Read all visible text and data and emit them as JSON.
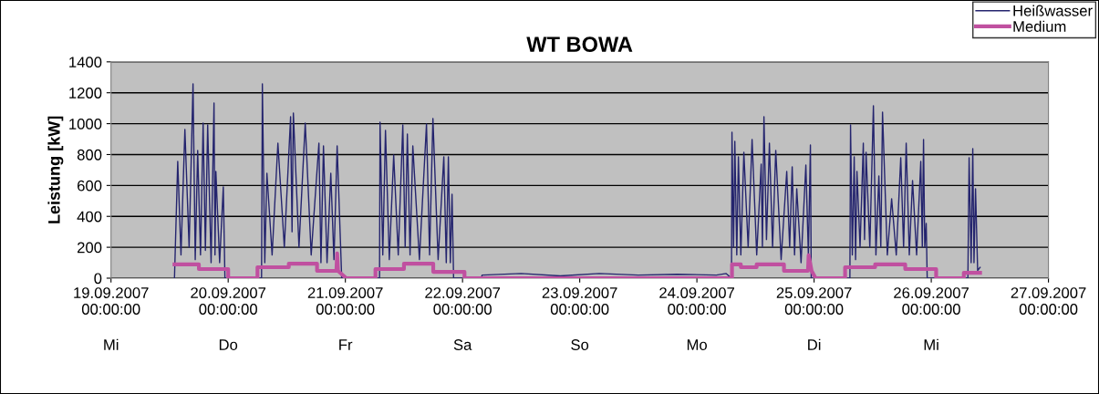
{
  "chart_data": {
    "type": "line",
    "title": "WT BOWA",
    "ylabel": "Leistung [kW]",
    "ylim": [
      0,
      1400
    ],
    "yticks": [
      0,
      200,
      400,
      600,
      800,
      1000,
      1200,
      1400
    ],
    "xlim": [
      "2007-09-19",
      "2007-09-27"
    ],
    "xticks": [
      {
        "value": "2007-09-19",
        "label": "19.09.2007\n00:00:00"
      },
      {
        "value": "2007-09-20",
        "label": "20.09.2007\n00:00:00"
      },
      {
        "value": "2007-09-21",
        "label": "21.09.2007\n00:00:00"
      },
      {
        "value": "2007-09-22",
        "label": "22.09.2007\n00:00:00"
      },
      {
        "value": "2007-09-23",
        "label": "23.09.2007\n00:00:00"
      },
      {
        "value": "2007-09-24",
        "label": "24.09.2007\n00:00:00"
      },
      {
        "value": "2007-09-25",
        "label": "25.09.2007\n00:00:00"
      },
      {
        "value": "2007-09-26",
        "label": "26.09.2007\n00:00:00"
      },
      {
        "value": "2007-09-27",
        "label": "27.09.2007\n00:00:00"
      }
    ],
    "annotations": [
      "Mi",
      "Do",
      "Fr",
      "Sa",
      "So",
      "Mo",
      "Di",
      "Mi"
    ],
    "grid": "y",
    "legend": "top right",
    "marker": "none",
    "line_style": "solid",
    "series": [
      {
        "name": "Heißwasser",
        "color": "#24246e",
        "x": [
          "2007-09-19T13:00",
          "2007-09-19T13:40",
          "2007-09-19T14:20",
          "2007-09-19T15:08",
          "2007-09-19T16:00",
          "2007-09-19T16:48",
          "2007-09-19T17:15",
          "2007-09-19T17:45",
          "2007-09-19T18:20",
          "2007-09-19T18:52",
          "2007-09-19T19:20",
          "2007-09-19T19:48",
          "2007-09-19T20:30",
          "2007-09-19T21:06",
          "2007-09-19T21:18",
          "2007-09-19T21:29",
          "2007-09-19T22:15",
          "2007-09-19T23:00",
          "2007-09-19T23:20",
          "2007-09-20T06:50",
          "2007-09-20T07:00",
          "2007-09-20T07:30",
          "2007-09-20T07:56",
          "2007-09-20T09:00",
          "2007-09-20T10:11",
          "2007-09-20T11:30",
          "2007-09-20T12:47",
          "2007-09-20T13:05",
          "2007-09-20T13:21",
          "2007-09-20T14:30",
          "2007-09-20T15:47",
          "2007-09-20T17:00",
          "2007-09-20T18:35",
          "2007-09-20T19:00",
          "2007-09-20T19:31",
          "2007-09-20T20:15",
          "2007-09-20T21:01",
          "2007-09-20T21:40",
          "2007-09-20T22:19",
          "2007-09-20T23:15",
          "2007-09-21T07:00",
          "2007-09-21T07:06",
          "2007-09-21T07:40",
          "2007-09-21T08:13",
          "2007-09-21T09:00",
          "2007-09-21T09:54",
          "2007-09-21T10:50",
          "2007-09-21T11:46",
          "2007-09-21T12:15",
          "2007-09-21T12:42",
          "2007-09-21T13:15",
          "2007-09-21T13:49",
          "2007-09-21T15:10",
          "2007-09-21T16:37",
          "2007-09-21T17:15",
          "2007-09-21T17:56",
          "2007-09-21T19:00",
          "2007-09-21T20:10",
          "2007-09-21T20:40",
          "2007-09-21T21:06",
          "2007-09-21T21:30",
          "2007-09-21T21:51",
          "2007-09-21T22:10",
          "2007-09-22T03:50",
          "2007-09-22T04:00",
          "2007-09-22T12:00",
          "2007-09-22T20:00",
          "2007-09-23T04:00",
          "2007-09-23T12:00",
          "2007-09-23T20:00",
          "2007-09-24T04:00",
          "2007-09-24T06:00",
          "2007-09-24T07:05",
          "2007-09-24T07:11",
          "2007-09-24T07:30",
          "2007-09-24T07:46",
          "2007-09-24T08:10",
          "2007-09-24T08:30",
          "2007-09-24T09:00",
          "2007-09-24T09:37",
          "2007-09-24T10:30",
          "2007-09-24T11:18",
          "2007-09-24T12:15",
          "2007-09-24T13:10",
          "2007-09-24T13:25",
          "2007-09-24T13:44",
          "2007-09-24T14:15",
          "2007-09-24T14:51",
          "2007-09-24T15:30",
          "2007-09-24T16:09",
          "2007-09-24T17:15",
          "2007-09-24T18:24",
          "2007-09-24T19:00",
          "2007-09-24T19:31",
          "2007-09-24T20:00",
          "2007-09-24T20:27",
          "2007-09-24T21:20",
          "2007-09-24T22:19",
          "2007-09-24T22:50",
          "2007-09-24T23:15",
          "2007-09-24T23:25",
          "2007-09-25T07:20",
          "2007-09-25T07:28",
          "2007-09-25T07:50",
          "2007-09-25T08:13",
          "2007-09-25T08:30",
          "2007-09-25T08:47",
          "2007-09-25T09:25",
          "2007-09-25T10:05",
          "2007-09-25T10:20",
          "2007-09-25T10:39",
          "2007-09-25T11:25",
          "2007-09-25T12:09",
          "2007-09-25T12:40",
          "2007-09-25T13:16",
          "2007-09-25T13:40",
          "2007-09-25T14:01",
          "2007-09-25T15:00",
          "2007-09-25T15:53",
          "2007-09-25T16:50",
          "2007-09-25T17:45",
          "2007-09-25T18:20",
          "2007-09-25T18:52",
          "2007-09-25T19:30",
          "2007-09-25T20:10",
          "2007-09-25T21:00",
          "2007-09-25T21:51",
          "2007-09-25T22:10",
          "2007-09-25T22:25",
          "2007-09-25T22:40",
          "2007-09-25T22:58",
          "2007-09-25T23:10",
          "2007-09-26T07:30",
          "2007-09-26T07:45",
          "2007-09-26T08:10",
          "2007-09-26T08:30",
          "2007-09-26T08:45",
          "2007-09-26T09:04",
          "2007-09-26T09:30",
          "2007-09-26T10:00"
        ],
        "values": [
          0,
          756,
          150,
          963,
          200,
          1258,
          120,
          827,
          150,
          1004,
          180,
          992,
          100,
          1134,
          150,
          691,
          100,
          591,
          0,
          0,
          1258,
          100,
          679,
          150,
          874,
          200,
          1045,
          300,
          1069,
          200,
          1004,
          150,
          874,
          100,
          856,
          100,
          679,
          120,
          856,
          0,
          0,
          1010,
          150,
          957,
          120,
          797,
          150,
          992,
          200,
          933,
          150,
          856,
          120,
          998,
          150,
          1034,
          120,
          786,
          100,
          786,
          100,
          543,
          0,
          0,
          20,
          30,
          15,
          30,
          20,
          25,
          20,
          30,
          0,
          945,
          200,
          886,
          150,
          786,
          150,
          815,
          200,
          898,
          150,
          738,
          200,
          1045,
          250,
          874,
          200,
          827,
          120,
          691,
          200,
          721,
          150,
          579,
          100,
          732,
          150,
          862,
          0,
          0,
          992,
          150,
          786,
          120,
          691,
          200,
          874,
          250,
          815,
          200,
          1116,
          150,
          662,
          200,
          1075,
          150,
          514,
          150,
          780,
          200,
          874,
          150,
          632,
          150,
          756,
          200,
          898,
          200,
          354,
          0,
          0,
          780,
          100,
          839,
          100,
          579,
          50,
          70
        ]
      },
      {
        "name": "Medium",
        "color": "#c050a0",
        "x": [
          "2007-09-19T13:00",
          "2007-09-19T18:00",
          "2007-09-19T18:00",
          "2007-09-20T00:00",
          "2007-09-20T00:00",
          "2007-09-20T06:00",
          "2007-09-20T06:00",
          "2007-09-20T12:25",
          "2007-09-20T12:25",
          "2007-09-20T18:12",
          "2007-09-20T18:12",
          "2007-09-20T22:10",
          "2007-09-20T22:19",
          "2007-09-20T22:30",
          "2007-09-21T00:11",
          "2007-09-21T06:10",
          "2007-09-21T06:10",
          "2007-09-21T12:00",
          "2007-09-21T12:00",
          "2007-09-21T18:00",
          "2007-09-21T18:00",
          "2007-09-22T00:24",
          "2007-09-22T00:24",
          "2007-09-24T07:11",
          "2007-09-24T07:11",
          "2007-09-24T09:00",
          "2007-09-24T09:00",
          "2007-09-24T12:14",
          "2007-09-24T12:14",
          "2007-09-24T17:50",
          "2007-09-24T17:50",
          "2007-09-24T22:45",
          "2007-09-24T22:53",
          "2007-09-24T23:30",
          "2007-09-25T00:18",
          "2007-09-25T06:21",
          "2007-09-25T06:21",
          "2007-09-25T12:30",
          "2007-09-25T12:30",
          "2007-09-25T18:40",
          "2007-09-25T18:40",
          "2007-09-26T01:00",
          "2007-09-26T01:00",
          "2007-09-26T06:40",
          "2007-09-26T06:40",
          "2007-09-26T10:00"
        ],
        "values": [
          89,
          89,
          59,
          59,
          0,
          0,
          71,
          71,
          94,
          94,
          47,
          47,
          160,
          47,
          0,
          0,
          59,
          59,
          94,
          94,
          41,
          41,
          0,
          0,
          89,
          89,
          71,
          71,
          89,
          89,
          47,
          47,
          148,
          47,
          0,
          0,
          71,
          71,
          89,
          89,
          59,
          59,
          0,
          0,
          35,
          35
        ]
      }
    ]
  }
}
